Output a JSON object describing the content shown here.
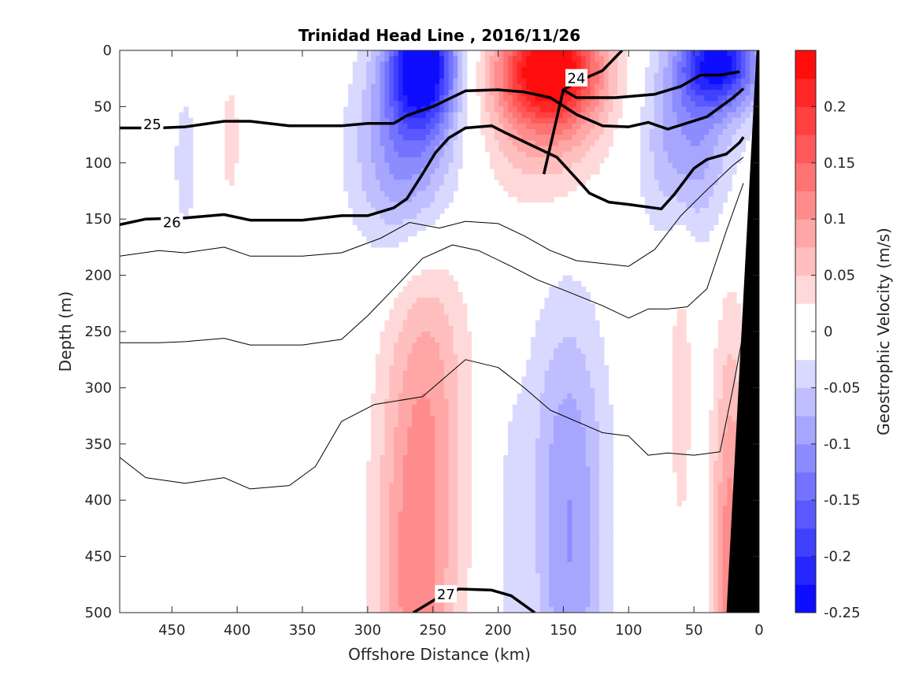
{
  "chart_data": {
    "type": "heatmap",
    "title": "Trinidad Head Line , 2016/11/26",
    "xlabel": "Offshore Distance (km)",
    "ylabel": "Depth (m)",
    "xlim": [
      490,
      0
    ],
    "ylim": [
      0,
      500
    ],
    "x_reversed": true,
    "y_reversed": true,
    "xticks": [
      450,
      400,
      350,
      300,
      250,
      200,
      150,
      100,
      50,
      0
    ],
    "yticks": [
      0,
      50,
      100,
      150,
      200,
      250,
      300,
      350,
      400,
      450,
      500
    ],
    "colorbar": {
      "label": "Geostrophic Velocity (m/s)",
      "range": [
        -0.25,
        0.25
      ],
      "levels": [
        -0.25,
        -0.225,
        -0.2,
        -0.175,
        -0.15,
        -0.125,
        -0.1,
        -0.075,
        -0.05,
        -0.025,
        0,
        0.025,
        0.05,
        0.075,
        0.1,
        0.125,
        0.15,
        0.175,
        0.2,
        0.225,
        0.25
      ],
      "ticks": [
        -0.25,
        -0.2,
        -0.15,
        -0.1,
        -0.05,
        0,
        0.05,
        0.1,
        0.15,
        0.2
      ],
      "tick_labels": [
        "-0.25",
        "-0.2",
        "-0.15",
        "-0.1",
        "-0.05",
        "0",
        "0.05",
        "0.1",
        "0.15",
        "0.2"
      ],
      "colors": {
        "negative": "#0000ff",
        "zero": "#ffffff",
        "positive": "#ff0000"
      }
    },
    "velocity_features": [
      {
        "name": "core-neg-250",
        "x": 258,
        "depth": 10,
        "v": -0.25,
        "sx": 18,
        "sz": 40
      },
      {
        "name": "band-neg-250",
        "x": 270,
        "depth": 90,
        "v": -0.12,
        "sx": 28,
        "sz": 65
      },
      {
        "name": "core-pos-150",
        "x": 160,
        "depth": 15,
        "v": 0.25,
        "sx": 28,
        "sz": 35
      },
      {
        "name": "band-pos-150",
        "x": 165,
        "depth": 70,
        "v": 0.07,
        "sx": 35,
        "sz": 50
      },
      {
        "name": "core-neg-50",
        "x": 30,
        "depth": 10,
        "v": -0.22,
        "sx": 22,
        "sz": 30
      },
      {
        "name": "band-neg-50",
        "x": 55,
        "depth": 80,
        "v": -0.1,
        "sx": 25,
        "sz": 60
      },
      {
        "name": "neg-440",
        "x": 440,
        "depth": 100,
        "v": -0.035,
        "sx": 8,
        "sz": 60
      },
      {
        "name": "pos-400",
        "x": 405,
        "depth": 80,
        "v": 0.035,
        "sx": 6,
        "sz": 50
      },
      {
        "name": "pos-250-deep",
        "x": 262,
        "depth": 460,
        "v": 0.12,
        "sx": 22,
        "sz": 170
      },
      {
        "name": "pos-250-tail",
        "x": 245,
        "depth": 270,
        "v": 0.03,
        "sx": 20,
        "sz": 90
      },
      {
        "name": "neg-150-deep",
        "x": 145,
        "depth": 480,
        "v": -0.09,
        "sx": 20,
        "sz": 150
      },
      {
        "name": "neg-150-tail",
        "x": 150,
        "depth": 330,
        "v": -0.03,
        "sx": 25,
        "sz": 90
      },
      {
        "name": "neg-190",
        "x": 190,
        "depth": 440,
        "v": -0.03,
        "sx": 8,
        "sz": 90
      },
      {
        "name": "pos-60",
        "x": 60,
        "depth": 300,
        "v": 0.035,
        "sx": 8,
        "sz": 130
      },
      {
        "name": "pos-20-deep",
        "x": 22,
        "depth": 470,
        "v": 0.12,
        "sx": 10,
        "sz": 150
      }
    ],
    "density_contours": [
      {
        "label": "24",
        "bold": true,
        "label_at": [
          140,
          25
        ],
        "points": [
          [
            165,
            110
          ],
          [
            150,
            35
          ],
          [
            140,
            28
          ],
          [
            120,
            18
          ],
          [
            105,
            0
          ]
        ]
      },
      {
        "label": "",
        "bold": true,
        "points": [
          [
            150,
            35
          ],
          [
            140,
            42
          ],
          [
            110,
            42
          ],
          [
            80,
            39
          ],
          [
            60,
            32
          ],
          [
            45,
            22
          ],
          [
            30,
            22
          ],
          [
            15,
            19
          ]
        ]
      },
      {
        "label": "25",
        "bold": true,
        "label_at": [
          465,
          66
        ],
        "points": [
          [
            490,
            69
          ],
          [
            460,
            69
          ],
          [
            440,
            68
          ],
          [
            410,
            63
          ],
          [
            390,
            63
          ],
          [
            360,
            67
          ],
          [
            320,
            67
          ],
          [
            300,
            65
          ],
          [
            280,
            65
          ],
          [
            270,
            58
          ],
          [
            250,
            50
          ],
          [
            225,
            36
          ],
          [
            200,
            35
          ],
          [
            180,
            37
          ],
          [
            160,
            42
          ],
          [
            140,
            57
          ],
          [
            120,
            67
          ],
          [
            100,
            68
          ],
          [
            85,
            64
          ],
          [
            70,
            70
          ],
          [
            40,
            59
          ],
          [
            20,
            42
          ],
          [
            12,
            34
          ]
        ]
      },
      {
        "label": "26",
        "bold": true,
        "label_at": [
          450,
          153
        ],
        "points": [
          [
            490,
            155
          ],
          [
            470,
            150
          ],
          [
            440,
            149
          ],
          [
            410,
            146
          ],
          [
            390,
            151
          ],
          [
            350,
            151
          ],
          [
            320,
            147
          ],
          [
            300,
            147
          ],
          [
            280,
            140
          ],
          [
            270,
            132
          ],
          [
            258,
            110
          ],
          [
            248,
            91
          ],
          [
            238,
            78
          ],
          [
            225,
            69
          ],
          [
            205,
            67
          ],
          [
            195,
            73
          ],
          [
            175,
            84
          ],
          [
            155,
            95
          ],
          [
            140,
            114
          ],
          [
            130,
            127
          ],
          [
            115,
            135
          ],
          [
            100,
            137
          ],
          [
            75,
            141
          ],
          [
            65,
            128
          ],
          [
            50,
            105
          ],
          [
            40,
            97
          ],
          [
            25,
            92
          ],
          [
            15,
            82
          ],
          [
            12,
            77
          ]
        ]
      },
      {
        "label": "27",
        "bold": true,
        "label_at": [
          240,
          484
        ],
        "points": [
          [
            265,
            500
          ],
          [
            245,
            486
          ],
          [
            230,
            479
          ],
          [
            205,
            480
          ],
          [
            190,
            485
          ],
          [
            172,
            500
          ]
        ]
      },
      {
        "label": "",
        "bold": false,
        "points": [
          [
            490,
            183
          ],
          [
            460,
            178
          ],
          [
            440,
            180
          ],
          [
            410,
            175
          ],
          [
            390,
            183
          ],
          [
            350,
            183
          ],
          [
            320,
            180
          ],
          [
            290,
            167
          ],
          [
            268,
            153
          ],
          [
            245,
            158
          ],
          [
            225,
            152
          ],
          [
            200,
            154
          ],
          [
            180,
            165
          ],
          [
            160,
            178
          ],
          [
            140,
            187
          ],
          [
            100,
            192
          ],
          [
            80,
            177
          ],
          [
            60,
            147
          ],
          [
            40,
            124
          ],
          [
            20,
            102
          ],
          [
            12,
            95
          ]
        ]
      },
      {
        "label": "",
        "bold": false,
        "points": [
          [
            490,
            260
          ],
          [
            460,
            260
          ],
          [
            440,
            259
          ],
          [
            410,
            256
          ],
          [
            390,
            262
          ],
          [
            350,
            262
          ],
          [
            320,
            257
          ],
          [
            300,
            236
          ],
          [
            280,
            212
          ],
          [
            258,
            185
          ],
          [
            235,
            173
          ],
          [
            215,
            178
          ],
          [
            190,
            192
          ],
          [
            170,
            204
          ],
          [
            150,
            213
          ],
          [
            120,
            227
          ],
          [
            100,
            238
          ],
          [
            85,
            230
          ],
          [
            70,
            230
          ],
          [
            55,
            228
          ],
          [
            40,
            212
          ],
          [
            25,
            160
          ],
          [
            12,
            118
          ]
        ]
      },
      {
        "label": "",
        "bold": false,
        "points": [
          [
            490,
            362
          ],
          [
            470,
            380
          ],
          [
            440,
            385
          ],
          [
            410,
            380
          ],
          [
            390,
            390
          ],
          [
            360,
            387
          ],
          [
            340,
            370
          ],
          [
            320,
            330
          ],
          [
            295,
            315
          ],
          [
            258,
            308
          ],
          [
            225,
            275
          ],
          [
            200,
            282
          ],
          [
            180,
            300
          ],
          [
            160,
            320
          ],
          [
            120,
            340
          ],
          [
            100,
            343
          ],
          [
            85,
            360
          ],
          [
            70,
            358
          ],
          [
            50,
            360
          ],
          [
            30,
            357
          ],
          [
            20,
            300
          ],
          [
            12,
            250
          ]
        ]
      }
    ],
    "coast_profile": [
      [
        0,
        0
      ],
      [
        2,
        0
      ],
      [
        25,
        500
      ],
      [
        0,
        500
      ]
    ]
  }
}
